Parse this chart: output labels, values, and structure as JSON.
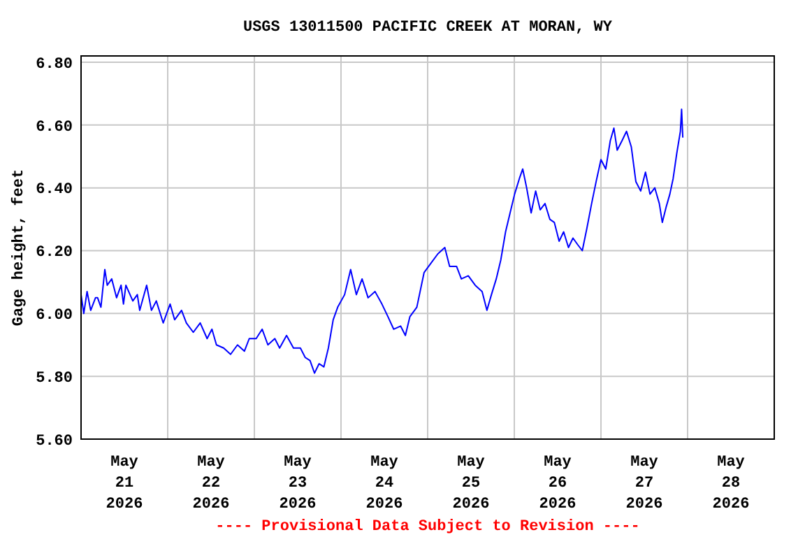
{
  "chart_data": {
    "type": "line",
    "title": "USGS 13011500 PACIFIC CREEK AT MORAN, WY",
    "ylabel": "Gage height, feet",
    "annotations": [
      "---- Provisional Data Subject to Revision ----"
    ],
    "xlim": [
      "2026-05-21T00:00",
      "2026-05-29T00:00"
    ],
    "xticks": [
      {
        "value": "2026-05-21T12:00",
        "label": "May\n21\n2026"
      },
      {
        "value": "2026-05-22T00:00",
        "label": null
      },
      {
        "value": "2026-05-22T12:00",
        "label": "May\n22\n2026"
      },
      {
        "value": "2026-05-23T00:00",
        "label": null
      },
      {
        "value": "2026-05-23T12:00",
        "label": "May\n23\n2026"
      },
      {
        "value": "2026-05-24T00:00",
        "label": null
      },
      {
        "value": "2026-05-24T12:00",
        "label": "May\n24\n2026"
      },
      {
        "value": "2026-05-25T00:00",
        "label": null
      },
      {
        "value": "2026-05-25T12:00",
        "label": "May\n25\n2026"
      },
      {
        "value": "2026-05-26T00:00",
        "label": null
      },
      {
        "value": "2026-05-26T12:00",
        "label": "May\n26\n2026"
      },
      {
        "value": "2026-05-27T00:00",
        "label": null
      },
      {
        "value": "2026-05-27T12:00",
        "label": "May\n27\n2026"
      },
      {
        "value": "2026-05-28T00:00",
        "label": null
      },
      {
        "value": "2026-05-28T12:00",
        "label": "May\n28\n2026"
      }
    ],
    "ylim": [
      5.6,
      6.82
    ],
    "yticks": [
      {
        "value": 5.6,
        "label": "5.60"
      },
      {
        "value": 5.8,
        "label": "5.80"
      },
      {
        "value": 6.0,
        "label": "6.00"
      },
      {
        "value": 6.2,
        "label": "6.20"
      },
      {
        "value": 6.4,
        "label": "6.40"
      },
      {
        "value": 6.6,
        "label": "6.60"
      },
      {
        "value": 6.8,
        "label": "6.80"
      }
    ],
    "grid": true,
    "marker": "none",
    "line_style": "solid",
    "x": [
      "2026-05-21T00:00",
      "2026-05-21T00:45",
      "2026-05-21T01:40",
      "2026-05-21T02:40",
      "2026-05-21T04:00",
      "2026-05-21T04:35",
      "2026-05-21T05:30",
      "2026-05-21T06:35",
      "2026-05-21T07:15",
      "2026-05-21T08:30",
      "2026-05-21T09:50",
      "2026-05-21T11:05",
      "2026-05-21T11:45",
      "2026-05-21T12:25",
      "2026-05-21T14:20",
      "2026-05-21T15:35",
      "2026-05-21T16:15",
      "2026-05-21T18:10",
      "2026-05-21T19:30",
      "2026-05-21T20:50",
      "2026-05-21T22:45",
      "2026-05-22T00:40",
      "2026-05-22T01:55",
      "2026-05-22T03:50",
      "2026-05-22T05:10",
      "2026-05-22T07:05",
      "2026-05-22T09:00",
      "2026-05-22T10:55",
      "2026-05-22T12:15",
      "2026-05-22T13:30",
      "2026-05-22T15:30",
      "2026-05-22T17:25",
      "2026-05-22T19:20",
      "2026-05-22T21:15",
      "2026-05-22T22:35",
      "2026-05-23T00:30",
      "2026-05-23T02:10",
      "2026-05-23T03:45",
      "2026-05-23T05:40",
      "2026-05-23T07:00",
      "2026-05-23T08:55",
      "2026-05-23T10:50",
      "2026-05-23T12:45",
      "2026-05-23T14:05",
      "2026-05-23T15:25",
      "2026-05-23T16:40",
      "2026-05-23T17:55",
      "2026-05-23T19:15",
      "2026-05-23T20:30",
      "2026-05-23T21:50",
      "2026-05-23T23:05",
      "2026-05-24T01:00",
      "2026-05-24T02:40",
      "2026-05-24T04:15",
      "2026-05-24T05:50",
      "2026-05-24T07:30",
      "2026-05-24T09:25",
      "2026-05-24T11:20",
      "2026-05-24T13:00",
      "2026-05-24T14:35",
      "2026-05-24T16:30",
      "2026-05-24T17:50",
      "2026-05-24T19:05",
      "2026-05-24T21:00",
      "2026-05-24T23:00",
      "2026-05-25T00:55",
      "2026-05-25T02:50",
      "2026-05-25T04:45",
      "2026-05-25T06:05",
      "2026-05-25T08:00",
      "2026-05-25T09:20",
      "2026-05-25T11:15",
      "2026-05-25T13:10",
      "2026-05-25T15:05",
      "2026-05-25T16:25",
      "2026-05-25T17:40",
      "2026-05-25T19:00",
      "2026-05-25T20:15",
      "2026-05-25T21:35",
      "2026-05-25T22:50",
      "2026-05-26T00:05",
      "2026-05-26T01:25",
      "2026-05-26T02:20",
      "2026-05-26T03:25",
      "2026-05-26T04:40",
      "2026-05-26T05:55",
      "2026-05-26T07:10",
      "2026-05-26T08:30",
      "2026-05-26T09:50",
      "2026-05-26T11:05",
      "2026-05-26T12:25",
      "2026-05-26T13:40",
      "2026-05-26T15:00",
      "2026-05-26T16:15",
      "2026-05-26T17:30",
      "2026-05-26T18:50",
      "2026-05-26T20:05",
      "2026-05-26T21:25",
      "2026-05-26T22:40",
      "2026-05-27T00:00",
      "2026-05-27T01:20",
      "2026-05-27T02:35",
      "2026-05-27T03:35",
      "2026-05-27T04:30",
      "2026-05-27T05:50",
      "2026-05-27T07:05",
      "2026-05-27T08:25",
      "2026-05-27T09:40",
      "2026-05-27T11:00",
      "2026-05-27T12:20",
      "2026-05-27T13:35",
      "2026-05-27T14:55",
      "2026-05-27T16:10",
      "2026-05-27T17:00",
      "2026-05-27T18:05",
      "2026-05-27T19:05",
      "2026-05-27T20:00",
      "2026-05-27T21:00",
      "2026-05-27T22:00",
      "2026-05-27T22:20",
      "2026-05-27T22:40"
    ],
    "series": [
      {
        "color": "#0000ff",
        "values": [
          6.06,
          6.0,
          6.07,
          6.01,
          6.05,
          6.05,
          6.02,
          6.14,
          6.09,
          6.11,
          6.05,
          6.09,
          6.03,
          6.09,
          6.04,
          6.06,
          6.01,
          6.09,
          6.01,
          6.04,
          5.97,
          6.03,
          5.98,
          6.01,
          5.97,
          5.94,
          5.97,
          5.92,
          5.95,
          5.9,
          5.89,
          5.87,
          5.9,
          5.88,
          5.92,
          5.92,
          5.95,
          5.9,
          5.92,
          5.89,
          5.93,
          5.89,
          5.89,
          5.86,
          5.85,
          5.81,
          5.84,
          5.83,
          5.89,
          5.98,
          6.02,
          6.06,
          6.14,
          6.06,
          6.11,
          6.05,
          6.07,
          6.03,
          5.99,
          5.95,
          5.96,
          5.93,
          5.99,
          6.02,
          6.13,
          6.16,
          6.19,
          6.21,
          6.15,
          6.15,
          6.11,
          6.12,
          6.09,
          6.07,
          6.01,
          6.06,
          6.11,
          6.17,
          6.26,
          6.32,
          6.38,
          6.43,
          6.46,
          6.4,
          6.32,
          6.39,
          6.33,
          6.35,
          6.3,
          6.29,
          6.23,
          6.26,
          6.21,
          6.24,
          6.22,
          6.2,
          6.27,
          6.35,
          6.42,
          6.49,
          6.46,
          6.55,
          6.59,
          6.52,
          6.55,
          6.58,
          6.53,
          6.42,
          6.39,
          6.45,
          6.38,
          6.4,
          6.35,
          6.29,
          6.34,
          6.38,
          6.43,
          6.51,
          6.58,
          6.65,
          6.56
        ]
      }
    ]
  }
}
